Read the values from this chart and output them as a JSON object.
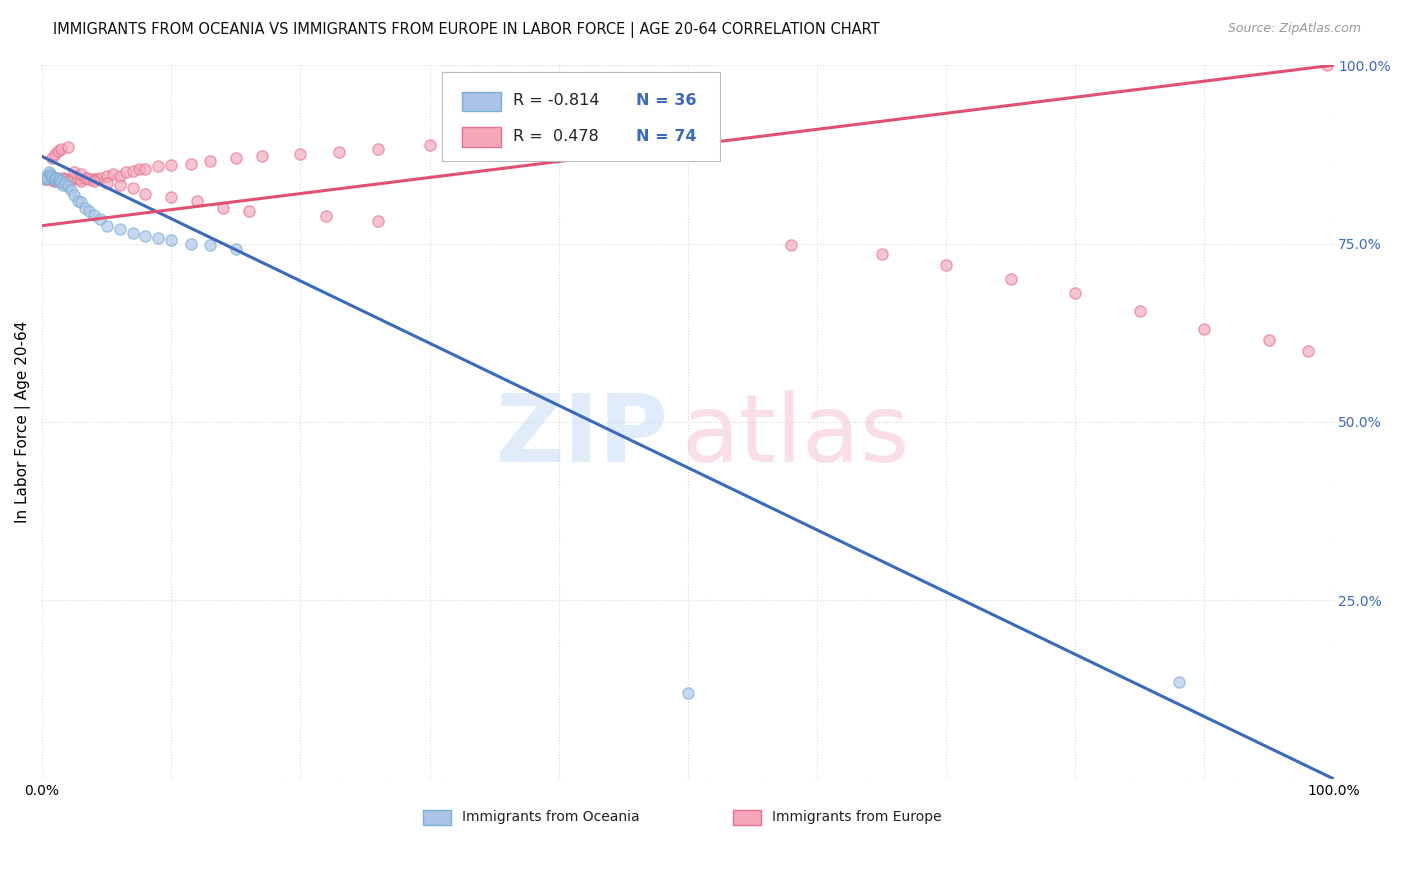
{
  "title": "IMMIGRANTS FROM OCEANIA VS IMMIGRANTS FROM EUROPE IN LABOR FORCE | AGE 20-64 CORRELATION CHART",
  "source": "Source: ZipAtlas.com",
  "ylabel": "In Labor Force | Age 20-64",
  "xlim": [
    0,
    1.0
  ],
  "ylim": [
    0,
    1.0
  ],
  "ytick_positions": [
    0.0,
    0.25,
    0.5,
    0.75,
    1.0
  ],
  "ytick_labels_right": [
    "",
    "25.0%",
    "50.0%",
    "75.0%",
    "100.0%"
  ],
  "background_color": "#ffffff",
  "grid_color": "#d8d8d8",
  "oceania_color": "#aac4e8",
  "europe_color": "#f4a7b9",
  "oceania_edge_color": "#7aafd4",
  "europe_edge_color": "#e87090",
  "trend_blue": "#3a6abf",
  "trend_pink": "#e05070",
  "legend_r_oceania": "R = -0.814",
  "legend_n_oceania": "N = 36",
  "legend_r_europe": "R =  0.478",
  "legend_n_europe": "N = 74",
  "blue_trend_x0": 0.0,
  "blue_trend_y0": 0.872,
  "blue_trend_x1": 1.0,
  "blue_trend_y1": 0.0,
  "pink_trend_x0": 0.0,
  "pink_trend_y0": 0.775,
  "pink_trend_x1": 1.0,
  "pink_trend_y1": 1.0,
  "oceania_x": [
    0.002,
    0.003,
    0.004,
    0.005,
    0.006,
    0.007,
    0.008,
    0.009,
    0.01,
    0.011,
    0.012,
    0.013,
    0.014,
    0.015,
    0.016,
    0.018,
    0.02,
    0.022,
    0.025,
    0.028,
    0.03,
    0.033,
    0.036,
    0.04,
    0.045,
    0.05,
    0.06,
    0.07,
    0.08,
    0.09,
    0.1,
    0.115,
    0.13,
    0.15,
    0.5,
    0.88
  ],
  "oceania_y": [
    0.84,
    0.845,
    0.842,
    0.85,
    0.848,
    0.845,
    0.843,
    0.84,
    0.84,
    0.842,
    0.838,
    0.84,
    0.838,
    0.835,
    0.832,
    0.835,
    0.83,
    0.825,
    0.818,
    0.81,
    0.808,
    0.8,
    0.795,
    0.79,
    0.785,
    0.775,
    0.77,
    0.765,
    0.76,
    0.758,
    0.755,
    0.75,
    0.748,
    0.742,
    0.12,
    0.135
  ],
  "europe_x": [
    0.002,
    0.003,
    0.004,
    0.005,
    0.006,
    0.007,
    0.008,
    0.009,
    0.01,
    0.011,
    0.012,
    0.013,
    0.014,
    0.015,
    0.016,
    0.017,
    0.018,
    0.02,
    0.022,
    0.025,
    0.028,
    0.03,
    0.033,
    0.036,
    0.04,
    0.042,
    0.045,
    0.05,
    0.055,
    0.06,
    0.065,
    0.07,
    0.075,
    0.08,
    0.09,
    0.1,
    0.115,
    0.13,
    0.15,
    0.17,
    0.2,
    0.23,
    0.26,
    0.3,
    0.34,
    0.008,
    0.01,
    0.012,
    0.015,
    0.02,
    0.025,
    0.03,
    0.035,
    0.04,
    0.05,
    0.06,
    0.07,
    0.08,
    0.1,
    0.12,
    0.14,
    0.16,
    0.22,
    0.26,
    0.58,
    0.65,
    0.7,
    0.75,
    0.8,
    0.85,
    0.9,
    0.95,
    0.98,
    0.995
  ],
  "europe_y": [
    0.84,
    0.84,
    0.842,
    0.84,
    0.842,
    0.845,
    0.84,
    0.838,
    0.838,
    0.84,
    0.842,
    0.84,
    0.838,
    0.84,
    0.842,
    0.84,
    0.84,
    0.838,
    0.84,
    0.842,
    0.84,
    0.838,
    0.842,
    0.84,
    0.84,
    0.84,
    0.842,
    0.845,
    0.848,
    0.845,
    0.85,
    0.852,
    0.855,
    0.855,
    0.858,
    0.86,
    0.862,
    0.865,
    0.87,
    0.872,
    0.875,
    0.878,
    0.882,
    0.888,
    0.892,
    0.87,
    0.875,
    0.88,
    0.882,
    0.885,
    0.85,
    0.848,
    0.842,
    0.838,
    0.835,
    0.832,
    0.828,
    0.82,
    0.815,
    0.81,
    0.8,
    0.795,
    0.788,
    0.782,
    0.748,
    0.735,
    0.72,
    0.7,
    0.68,
    0.655,
    0.63,
    0.615,
    0.6,
    1.0
  ],
  "marker_size": 65,
  "alpha": 0.65
}
